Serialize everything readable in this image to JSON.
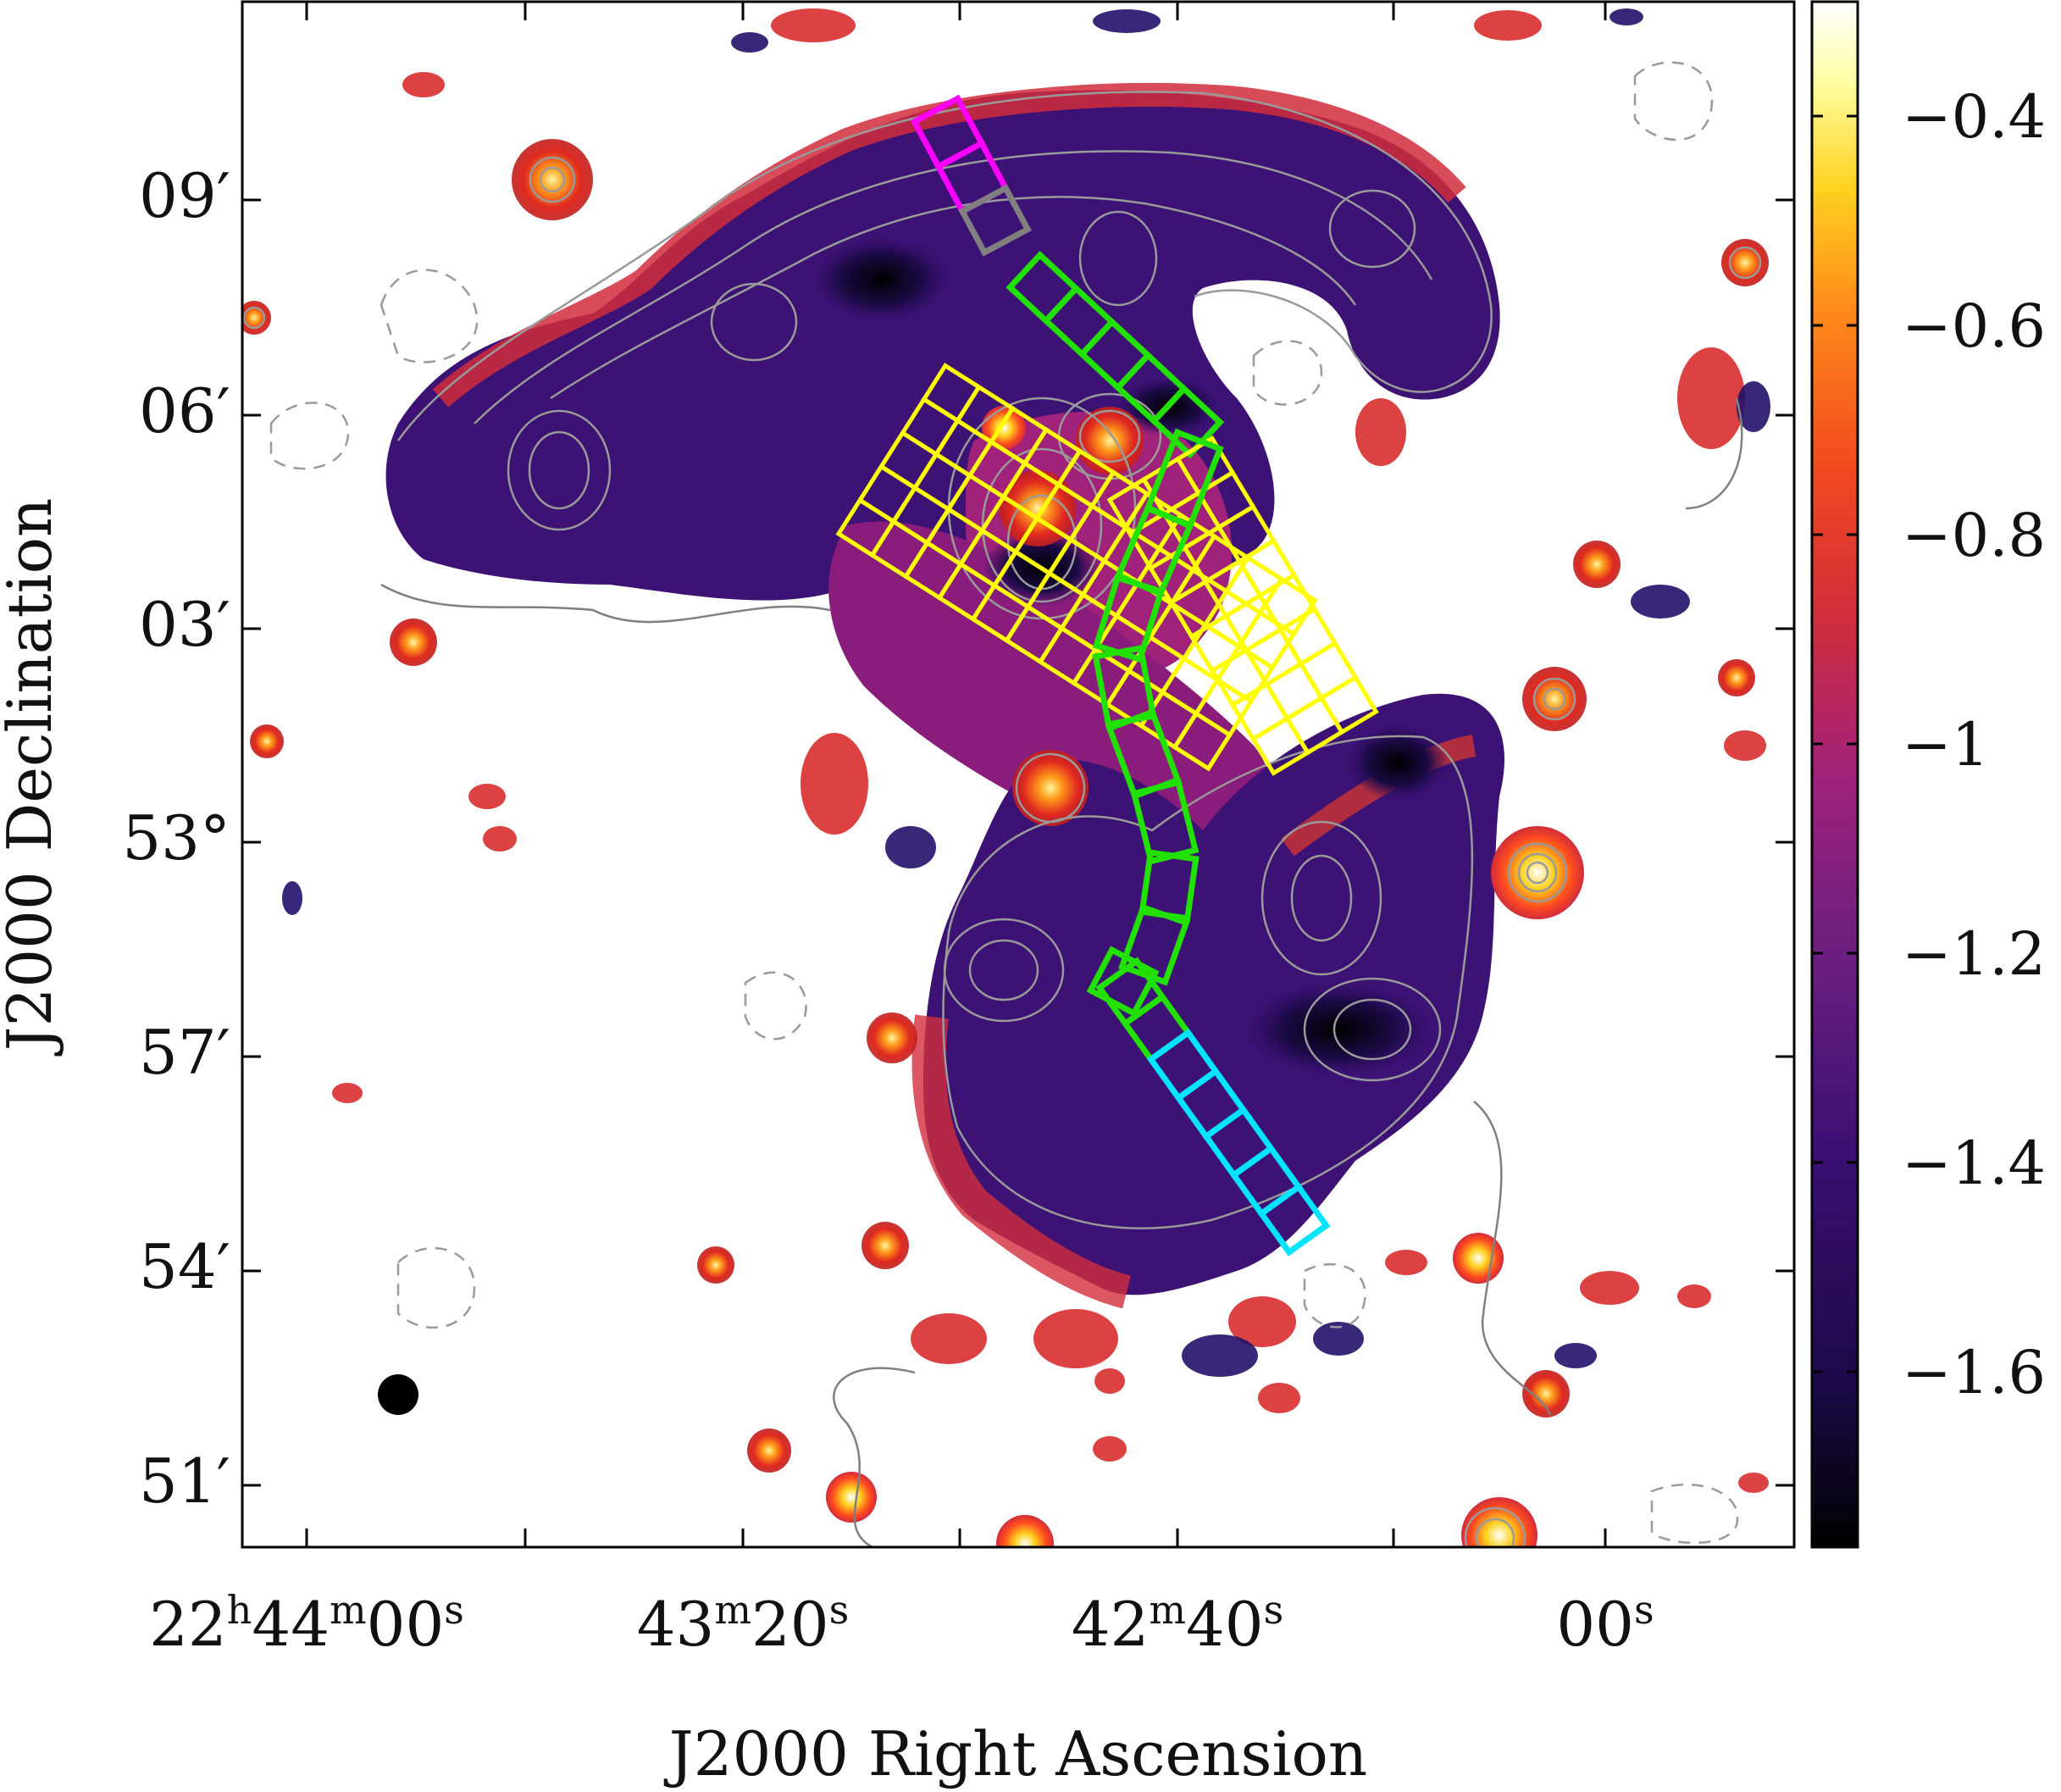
{
  "figure": {
    "x_axis_title": "J2000 Right Ascension",
    "y_axis_title": "J2000 Declination",
    "ra_ticks": [
      {
        "parts": [
          [
            "22",
            "n"
          ],
          [
            "h",
            "s"
          ],
          [
            "44",
            "n"
          ],
          [
            "m",
            "s"
          ],
          [
            "00",
            "n"
          ],
          [
            "s",
            "s"
          ]
        ]
      },
      {
        "parts": [
          [
            "43",
            "n"
          ],
          [
            "m",
            "s"
          ],
          [
            "20",
            "n"
          ],
          [
            "s",
            "s"
          ]
        ]
      },
      {
        "parts": [
          [
            "42",
            "n"
          ],
          [
            "m",
            "s"
          ],
          [
            "40",
            "n"
          ],
          [
            "s",
            "s"
          ]
        ]
      },
      {
        "parts": [
          [
            "00",
            "n"
          ],
          [
            "s",
            "s"
          ]
        ]
      }
    ],
    "dec_ticks": [
      "09′",
      "06′",
      "03′",
      "53°",
      "57′",
      "54′",
      "51′"
    ],
    "colorbar": {
      "ticks": [
        "−0.4",
        "−0.6",
        "−0.8",
        "−1",
        "−1.2",
        "−1.4",
        "−1.6"
      ],
      "colormap": [
        "#000000",
        "#1b0a45",
        "#3a0f73",
        "#6a1f80",
        "#a0227a",
        "#d12d3c",
        "#f24a1f",
        "#ff8a1a",
        "#ffd21f",
        "#ffffa6",
        "#ffffff"
      ]
    },
    "region_colors": {
      "magenta": "#ff00ff",
      "grey": "#808080",
      "green": "#22e000",
      "yellow": "#ffff00",
      "cyan": "#00e5ff"
    },
    "beam_marker": "filled-black-circle"
  }
}
